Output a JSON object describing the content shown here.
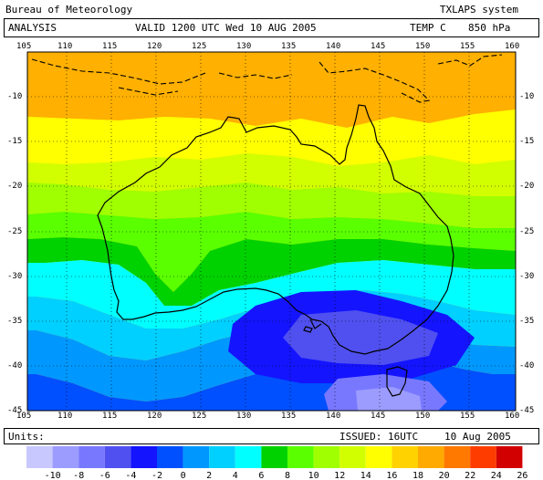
{
  "header": {
    "agency": "Bureau of Meteorology",
    "system": "TXLAPS system",
    "product": "ANALYSIS",
    "valid": "VALID  1200 UTC  Wed 10 AUG 2005",
    "field": "TEMP C",
    "level": "850 hPa"
  },
  "footer": {
    "units_label": "Units:",
    "issued": "ISSUED: 16UTC",
    "issued_date": "10 Aug 2005"
  },
  "map": {
    "lon_ticks": [
      "105",
      "110",
      "115",
      "120",
      "125",
      "130",
      "135",
      "140",
      "145",
      "150",
      "155",
      "160"
    ],
    "lat_ticks": [
      "-10",
      "-15",
      "-20",
      "-25",
      "-30",
      "-35",
      "-40",
      "-45"
    ]
  },
  "legend": {
    "labels": [
      "-10",
      "-8",
      "-6",
      "-4",
      "-2",
      "0",
      "2",
      "4",
      "6",
      "8",
      "10",
      "12",
      "14",
      "16",
      "18",
      "20",
      "22",
      "24",
      "26"
    ],
    "colors": [
      "#c8c8ff",
      "#9c9cff",
      "#7878ff",
      "#5050f0",
      "#1414ff",
      "#0050ff",
      "#0098ff",
      "#00d0ff",
      "#00ffff",
      "#00d200",
      "#5aff00",
      "#a0ff00",
      "#d2ff00",
      "#ffff00",
      "#ffd200",
      "#ffaa00",
      "#ff7800",
      "#ff3c00",
      "#d20000"
    ]
  }
}
